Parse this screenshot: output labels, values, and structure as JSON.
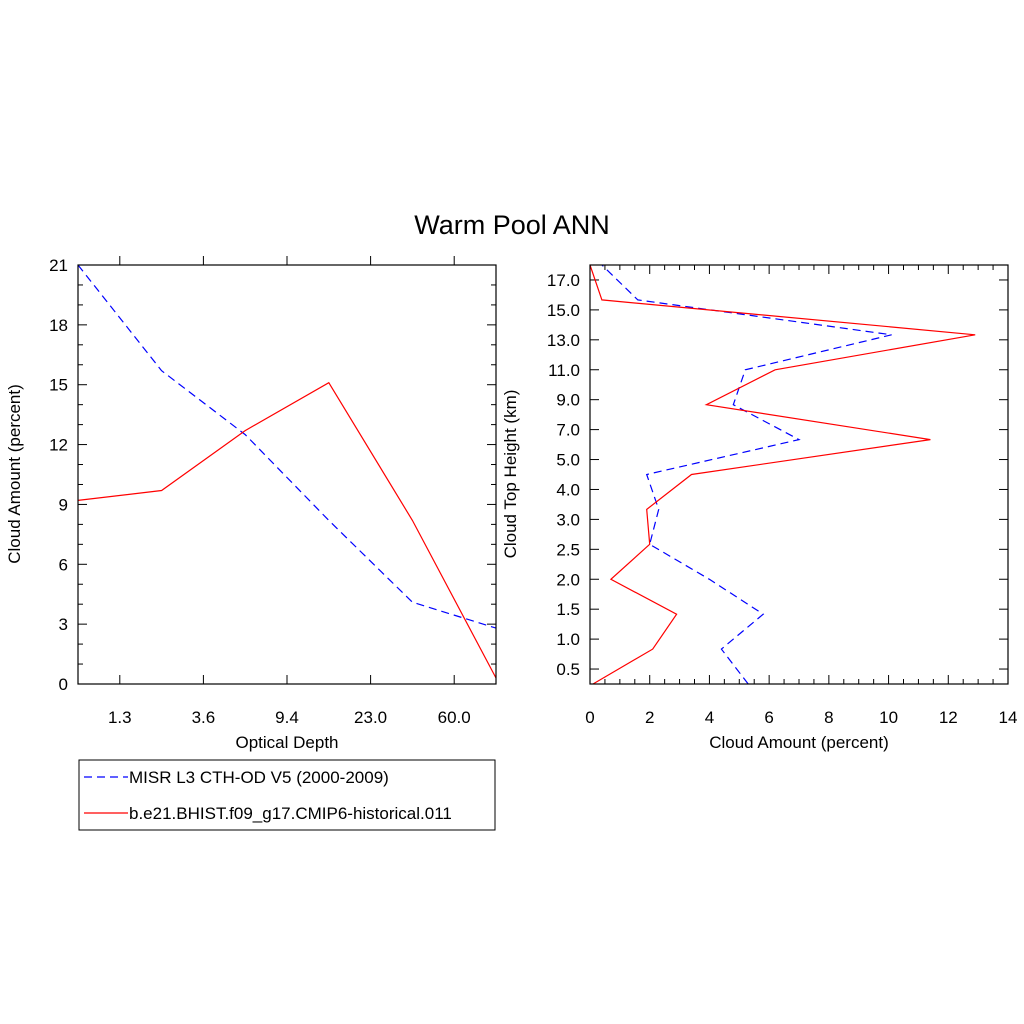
{
  "title": "Warm Pool ANN",
  "colors": {
    "obs": "#0000ff",
    "model": "#ff0000",
    "axis": "#000000"
  },
  "legend": {
    "entries": [
      {
        "label": "MISR L3 CTH-OD V5 (2000-2009)",
        "color": "#0000ff",
        "dash": "dashed"
      },
      {
        "label": "b.e21.BHIST.f09_g17.CMIP6-historical.011",
        "color": "#ff0000",
        "dash": "solid"
      }
    ]
  },
  "chart_data": [
    {
      "type": "line",
      "xlabel": "Optical Depth",
      "ylabel": "Cloud Amount (percent)",
      "x_tick_labels": [
        "1.3",
        "3.6",
        "9.4",
        "23.0",
        "60.0"
      ],
      "y_ticks": [
        0,
        3,
        6,
        9,
        12,
        15,
        18,
        21
      ],
      "ylim": [
        0,
        21
      ],
      "x_bins": 7,
      "series": [
        {
          "name": "MISR L3 CTH-OD V5 (2000-2009)",
          "values": [
            21.0,
            15.7,
            12.5,
            8.2,
            4.1,
            2.8
          ]
        },
        {
          "name": "b.e21.BHIST.f09_g17.CMIP6-historical.011",
          "values": [
            9.2,
            9.7,
            12.7,
            15.1,
            8.2,
            0.3
          ]
        }
      ]
    },
    {
      "type": "line",
      "xlabel": "Cloud Amount (percent)",
      "ylabel": "Cloud Top Height (km)",
      "x_ticks": [
        0,
        2,
        4,
        6,
        8,
        10,
        12,
        14
      ],
      "xlim": [
        0,
        14
      ],
      "y_tick_labels": [
        "0.5",
        "1.0",
        "1.5",
        "2.0",
        "2.5",
        "3.0",
        "4.0",
        "5.0",
        "7.0",
        "9.0",
        "11.0",
        "13.0",
        "15.0",
        "17.0"
      ],
      "y_levels": 14,
      "series": [
        {
          "name": "MISR L3 CTH-OD V5 (2000-2009)",
          "values": [
            5.3,
            4.4,
            5.8,
            4.0,
            2.0,
            2.3,
            1.9,
            7.0,
            4.8,
            5.2,
            10.1,
            1.6,
            0.4
          ]
        },
        {
          "name": "b.e21.BHIST.f09_g17.CMIP6-historical.011",
          "values": [
            0.1,
            2.1,
            2.9,
            0.7,
            2.0,
            1.9,
            3.4,
            11.4,
            3.9,
            6.2,
            12.9,
            0.4,
            0.0
          ]
        }
      ]
    }
  ]
}
